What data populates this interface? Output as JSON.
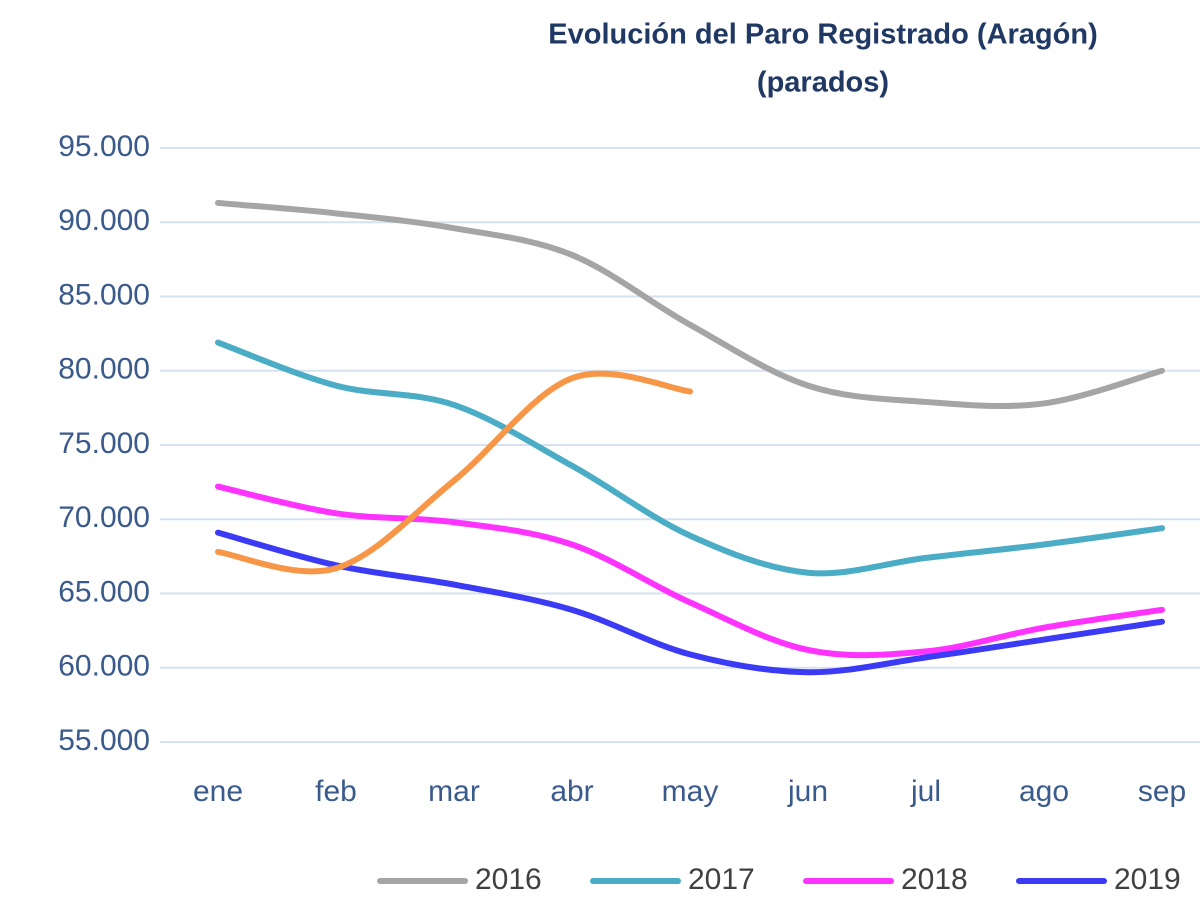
{
  "chart_data": {
    "type": "line",
    "title": "Evolución del Paro Registrado (Aragón)",
    "subtitle": "(parados)",
    "categories": [
      "ene",
      "feb",
      "mar",
      "abr",
      "may",
      "jun",
      "jul",
      "ago",
      "sep"
    ],
    "series": [
      {
        "name": "2016",
        "color": "#a5a5a5",
        "values": [
          91300,
          90600,
          89600,
          87800,
          83100,
          79000,
          77900,
          77800,
          80000
        ]
      },
      {
        "name": "2017",
        "color": "#4bacc6",
        "values": [
          81900,
          79000,
          77700,
          73600,
          68900,
          66400,
          67400,
          68300,
          69400
        ]
      },
      {
        "name": "2018",
        "color": "#ff33ff",
        "values": [
          72200,
          70400,
          69800,
          68300,
          64400,
          61200,
          61100,
          62700,
          63900
        ]
      },
      {
        "name": "2019",
        "color": "#3b3bf5",
        "values": [
          69100,
          66900,
          65600,
          63900,
          60900,
          59700,
          60700,
          61900,
          63100
        ]
      },
      {
        "color": "#f79646",
        "values": [
          67800,
          66700,
          72600,
          79500,
          78600,
          null,
          null,
          null,
          null
        ]
      }
    ],
    "ylim": [
      55000,
      95000
    ],
    "yticks": [
      {
        "value": 55000,
        "label": "55.000"
      },
      {
        "value": 60000,
        "label": "60.000"
      },
      {
        "value": 65000,
        "label": "65.000"
      },
      {
        "value": 70000,
        "label": "70.000"
      },
      {
        "value": 75000,
        "label": "75.000"
      },
      {
        "value": 80000,
        "label": "80.000"
      },
      {
        "value": 85000,
        "label": "85.000"
      },
      {
        "value": 90000,
        "label": "90.000"
      },
      {
        "value": 95000,
        "label": "95.000"
      }
    ],
    "grid": true,
    "legend": "bottom"
  }
}
